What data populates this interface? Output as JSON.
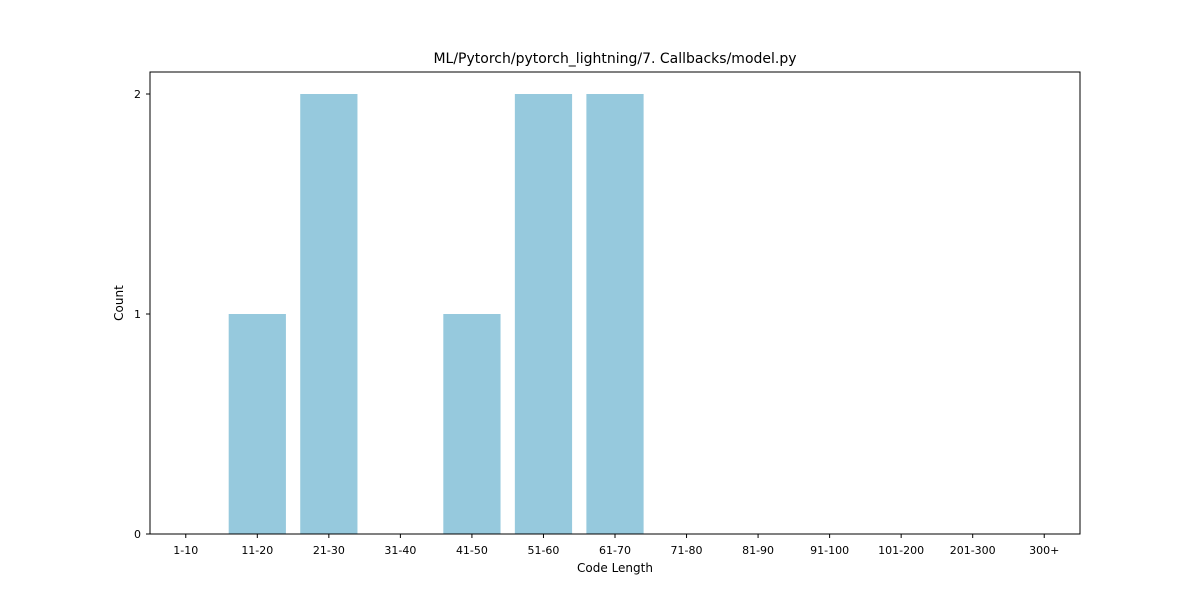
{
  "chart_data": {
    "type": "bar",
    "title": "ML/Pytorch/pytorch_lightning/7. Callbacks/model.py",
    "xlabel": "Code Length",
    "ylabel": "Count",
    "categories": [
      "1-10",
      "11-20",
      "21-30",
      "31-40",
      "41-50",
      "51-60",
      "61-70",
      "71-80",
      "81-90",
      "91-100",
      "101-200",
      "201-300",
      "300+"
    ],
    "values": [
      0,
      1,
      2,
      0,
      1,
      2,
      2,
      0,
      0,
      0,
      0,
      0,
      0
    ],
    "yticks": [
      "0",
      "1",
      "2"
    ],
    "ylim": [
      0,
      2.1
    ],
    "grid": false,
    "bar_color": "#96c9dd"
  }
}
